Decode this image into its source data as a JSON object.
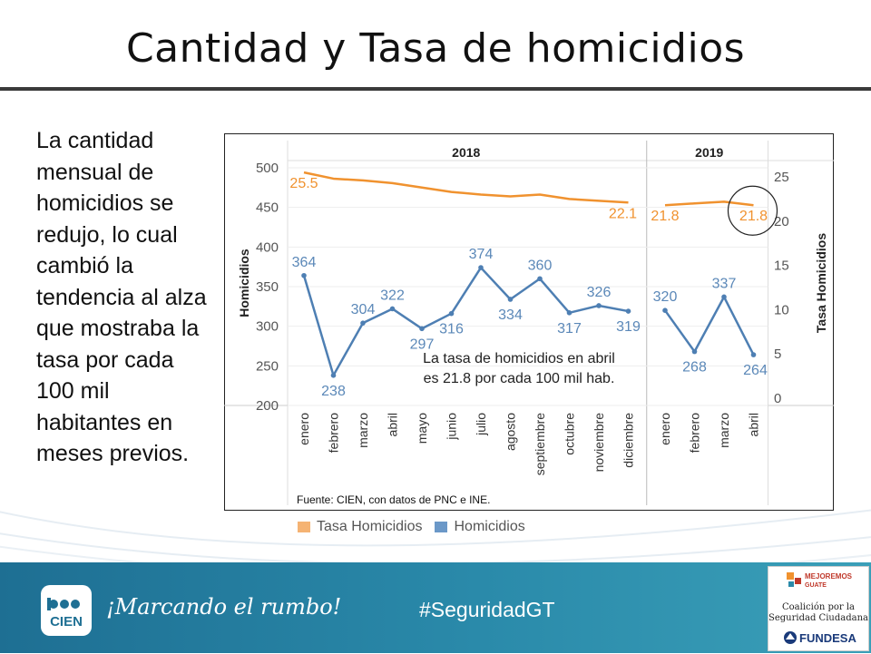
{
  "page": {
    "title": "Cantidad y Tasa de homicidios",
    "body_text": "La cantidad mensual de homicidios se redujo, lo cual cambió la tendencia al alza que mostraba la tasa por cada 100 mil habitantes en meses previos."
  },
  "chart_data": {
    "type": "line",
    "title": "",
    "ylabel": "Homicidios",
    "y2label": "Tasa Homicidios",
    "ylim": [
      200,
      510
    ],
    "y2lim": [
      0,
      27
    ],
    "yticks": [
      200,
      250,
      300,
      350,
      400,
      450,
      500
    ],
    "y2ticks": [
      0,
      5,
      10,
      15,
      20,
      25
    ],
    "years": [
      {
        "label": "2018",
        "months": 12
      },
      {
        "label": "2019",
        "months": 4
      }
    ],
    "categories": [
      "enero",
      "febrero",
      "marzo",
      "abril",
      "mayo",
      "junio",
      "julio",
      "agosto",
      "septiembre",
      "octubre",
      "noviembre",
      "diciembre",
      "enero",
      "febrero",
      "marzo",
      "abril"
    ],
    "series": [
      {
        "name": "Tasa Homicidios",
        "axis": "right",
        "color": "#f0922f",
        "values": [
          [
            25.5,
            24.8,
            24.6,
            24.3,
            23.8,
            23.3,
            23.0,
            22.8,
            23.0,
            22.5,
            22.3,
            22.1
          ],
          [
            21.8,
            22.0,
            22.2,
            21.8
          ]
        ],
        "labels": [
          {
            "index": 0,
            "text": "25.5"
          },
          {
            "index": 11,
            "text": "22.1"
          },
          {
            "index": 12,
            "text": "21.8"
          },
          {
            "index": 15,
            "text": "21.8"
          }
        ]
      },
      {
        "name": "Homicidios",
        "axis": "left",
        "color": "#4e7fb3",
        "values": [
          [
            364,
            238,
            304,
            322,
            297,
            316,
            374,
            334,
            360,
            317,
            326,
            319
          ],
          [
            320,
            268,
            337,
            264
          ]
        ],
        "labels": [
          "364",
          "238",
          "304",
          "322",
          "297",
          "316",
          "374",
          "334",
          "360",
          "317",
          "326",
          "319",
          "320",
          "268",
          "337",
          "264"
        ]
      }
    ],
    "annotation": "La tasa de homicidios en abril es 21.8 por cada 100 mil hab.",
    "source": "Fuente: CIEN, con datos de PNC e INE.",
    "legend": [
      "Tasa Homicidios",
      "Homicidios"
    ],
    "legend_position": "bottom-left"
  },
  "footer": {
    "logo_text": "CIEN",
    "slogan": "¡Marcando el rumbo!",
    "hashtag": "#SeguridadGT",
    "partner": {
      "brand_top": "MEJOREMOS",
      "brand_bottom": "GUATE",
      "coalition_line1": "Coalición por la",
      "coalition_line2": "Seguridad Ciudadana",
      "fundesa": "FUNDESA"
    }
  }
}
